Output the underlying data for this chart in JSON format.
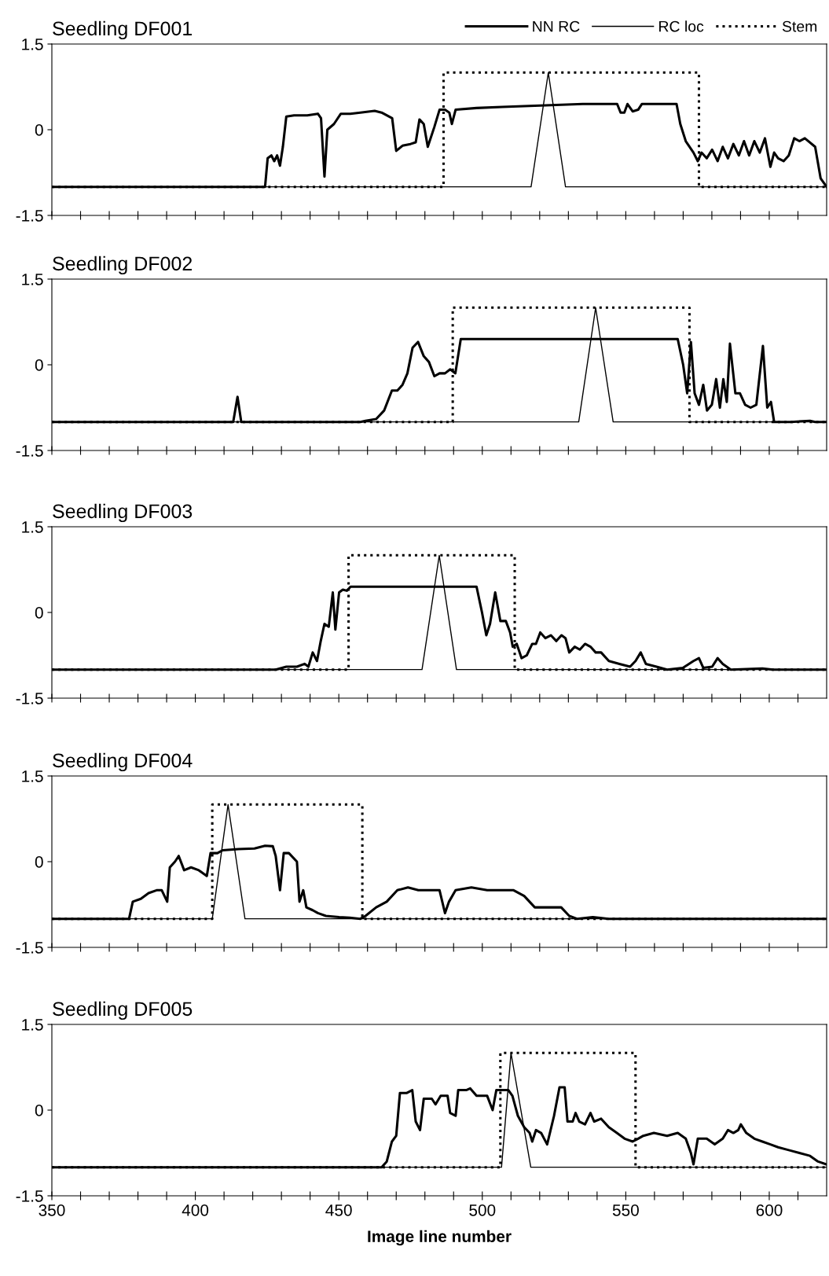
{
  "chart_data": [
    {
      "type": "line",
      "title": "Seedling DF001",
      "xlim": [
        350,
        620
      ],
      "ylim": [
        -1.5,
        1.5
      ],
      "yticks": [
        1.5,
        0,
        -1.5
      ],
      "tick_labels": "y",
      "legend": "top right",
      "xticks": [
        350,
        {
          "value": 360,
          "label": null
        },
        {
          "value": 370,
          "label": null
        },
        {
          "value": 380,
          "label": null
        },
        {
          "value": 390,
          "label": null
        },
        400,
        {
          "value": 410,
          "label": null
        },
        {
          "value": 420,
          "label": null
        },
        {
          "value": 430,
          "label": null
        },
        {
          "value": 440,
          "label": null
        },
        450,
        {
          "value": 460,
          "label": null
        },
        {
          "value": 470,
          "label": null
        },
        {
          "value": 480,
          "label": null
        },
        {
          "value": 490,
          "label": null
        },
        500,
        {
          "value": 510,
          "label": null
        },
        {
          "value": 520,
          "label": null
        },
        {
          "value": 530,
          "label": null
        },
        {
          "value": 540,
          "label": null
        },
        550,
        {
          "value": 560,
          "label": null
        },
        {
          "value": 570,
          "label": null
        },
        {
          "value": 580,
          "label": null
        },
        {
          "value": 590,
          "label": null
        },
        600,
        {
          "value": 610,
          "label": null
        }
      ],
      "series": [
        {
          "name": "NN RC",
          "color": "#000000",
          "line_style": "solid",
          "x": [
            350,
            424.3,
            425.2,
            426.5,
            427.5,
            428.5,
            429.5,
            430.5,
            431.7,
            434.4,
            439,
            442.7,
            443.8,
            445,
            446,
            448.3,
            450.7,
            454,
            457.5,
            462.5,
            464.9,
            468.6,
            470,
            472.2,
            475,
            476.8,
            478.1,
            479.6,
            481,
            483.3,
            485.1,
            487,
            488.5,
            489.4,
            490.7,
            498,
            507,
            523.9,
            535,
            547,
            548.2,
            549.5,
            550.6,
            552.4,
            554.3,
            555.6,
            567.7,
            569,
            570.9,
            573.6,
            575.1,
            576.4,
            578.2,
            580.1,
            582,
            583.8,
            585.6,
            587.5,
            589.4,
            591.2,
            593,
            594.8,
            596.7,
            598.5,
            600.4,
            601.7,
            603.1,
            605,
            606.8,
            608.7,
            610.5,
            612.4,
            616,
            617.9,
            620
          ],
          "values": [
            -1,
            -1,
            -0.5,
            -0.45,
            -0.55,
            -0.45,
            -0.63,
            -0.3,
            0.23,
            0.25,
            0.25,
            0.28,
            0.2,
            -0.82,
            0,
            0.1,
            0.28,
            0.28,
            0.3,
            0.33,
            0.3,
            0.2,
            -0.37,
            -0.28,
            -0.25,
            -0.22,
            0.18,
            0.1,
            -0.3,
            0.05,
            0.35,
            0.35,
            0.3,
            0.1,
            0.35,
            0.38,
            0.4,
            0.43,
            0.45,
            0.45,
            0.3,
            0.3,
            0.45,
            0.32,
            0.35,
            0.45,
            0.45,
            0.1,
            -0.2,
            -0.4,
            -0.55,
            -0.4,
            -0.5,
            -0.35,
            -0.55,
            -0.3,
            -0.5,
            -0.25,
            -0.45,
            -0.2,
            -0.45,
            -0.2,
            -0.4,
            -0.15,
            -0.65,
            -0.4,
            -0.5,
            -0.55,
            -0.45,
            -0.15,
            -0.2,
            -0.15,
            -0.3,
            -0.85,
            -1
          ]
        },
        {
          "name": "RC loc",
          "color": "#000000",
          "line_style": "solid",
          "x": [
            350,
            517,
            523,
            529,
            620
          ],
          "values": [
            -1,
            -1,
            1,
            -1,
            -1
          ]
        },
        {
          "name": "Stem",
          "color": "#000000",
          "line_style": "dotted",
          "x": [
            350,
            486.5,
            486.5,
            575.5,
            575.5,
            620
          ],
          "values": [
            -1,
            -1,
            1,
            1,
            -1,
            -1
          ]
        }
      ]
    },
    {
      "type": "line",
      "title": "Seedling DF002",
      "xlim": [
        350,
        620
      ],
      "ylim": [
        -1.5,
        1.5
      ],
      "yticks": [
        1.5,
        0,
        -1.5
      ],
      "tick_labels": "y",
      "xticks": [
        350,
        {
          "value": 360,
          "label": null
        },
        {
          "value": 370,
          "label": null
        },
        {
          "value": 380,
          "label": null
        },
        {
          "value": 390,
          "label": null
        },
        400,
        {
          "value": 410,
          "label": null
        },
        {
          "value": 420,
          "label": null
        },
        {
          "value": 430,
          "label": null
        },
        {
          "value": 440,
          "label": null
        },
        450,
        {
          "value": 460,
          "label": null
        },
        {
          "value": 470,
          "label": null
        },
        {
          "value": 480,
          "label": null
        },
        {
          "value": 490,
          "label": null
        },
        500,
        {
          "value": 510,
          "label": null
        },
        {
          "value": 520,
          "label": null
        },
        {
          "value": 530,
          "label": null
        },
        {
          "value": 540,
          "label": null
        },
        550,
        {
          "value": 560,
          "label": null
        },
        {
          "value": 570,
          "label": null
        },
        {
          "value": 580,
          "label": null
        },
        {
          "value": 590,
          "label": null
        },
        600,
        {
          "value": 610,
          "label": null
        }
      ],
      "series": [
        {
          "color": "#000000",
          "line_style": "solid",
          "x": [
            350,
            413.2,
            414.7,
            416,
            457.5,
            459.3,
            463,
            465.8,
            468.5,
            470.4,
            472.2,
            473.9,
            475.7,
            477.6,
            479.6,
            481.4,
            483.3,
            485.1,
            487,
            488.8,
            490.6,
            492.5,
            568.1,
            570,
            571.4,
            572.7,
            574,
            575.5,
            577,
            578.3,
            580,
            581.5,
            582.8,
            584,
            585.2,
            586.3,
            588.2,
            589.8,
            591.6,
            593.5,
            595.5,
            597.8,
            599.3,
            600.6,
            601.7,
            607.5,
            614.2,
            616,
            620
          ],
          "values": [
            -1,
            -1,
            -0.56,
            -1,
            -1,
            -0.98,
            -0.95,
            -0.8,
            -0.45,
            -0.45,
            -0.35,
            -0.15,
            0.3,
            0.4,
            0.15,
            0.05,
            -0.2,
            -0.15,
            -0.15,
            -0.08,
            -0.15,
            0.45,
            0.45,
            0,
            -0.5,
            0.4,
            -0.5,
            -0.7,
            -0.35,
            -0.8,
            -0.7,
            -0.25,
            -0.75,
            -0.25,
            -0.65,
            0.37,
            -0.5,
            -0.5,
            -0.7,
            -0.75,
            -0.7,
            0.33,
            -0.75,
            -0.65,
            -1,
            -1,
            -0.98,
            -1,
            -1
          ]
        },
        {
          "color": "#000000",
          "line_style": "solid",
          "x": [
            350,
            533.6,
            539.5,
            545.6,
            620
          ],
          "values": [
            -1,
            -1,
            1,
            -1,
            -1
          ]
        },
        {
          "color": "#000000",
          "line_style": "dotted",
          "x": [
            350,
            489.7,
            489.7,
            572.2,
            572.2,
            620
          ],
          "values": [
            -1,
            -1,
            1,
            1,
            -1,
            -1
          ]
        }
      ]
    },
    {
      "type": "line",
      "title": "Seedling DF003",
      "xlim": [
        350,
        620
      ],
      "ylim": [
        -1.5,
        1.5
      ],
      "yticks": [
        1.5,
        0,
        -1.5
      ],
      "tick_labels": "y",
      "xticks": [
        350,
        {
          "value": 360,
          "label": null
        },
        {
          "value": 370,
          "label": null
        },
        {
          "value": 380,
          "label": null
        },
        {
          "value": 390,
          "label": null
        },
        400,
        {
          "value": 410,
          "label": null
        },
        {
          "value": 420,
          "label": null
        },
        {
          "value": 430,
          "label": null
        },
        {
          "value": 440,
          "label": null
        },
        450,
        {
          "value": 460,
          "label": null
        },
        {
          "value": 470,
          "label": null
        },
        {
          "value": 480,
          "label": null
        },
        {
          "value": 490,
          "label": null
        },
        500,
        {
          "value": 510,
          "label": null
        },
        {
          "value": 520,
          "label": null
        },
        {
          "value": 530,
          "label": null
        },
        {
          "value": 540,
          "label": null
        },
        550,
        {
          "value": 560,
          "label": null
        },
        {
          "value": 570,
          "label": null
        },
        {
          "value": 580,
          "label": null
        },
        {
          "value": 590,
          "label": null
        },
        600,
        {
          "value": 610,
          "label": null
        }
      ],
      "series": [
        {
          "color": "#000000",
          "line_style": "solid",
          "x": [
            350,
            428,
            431.7,
            435.4,
            438.1,
            439.4,
            440.9,
            442.4,
            443.7,
            445,
            446.5,
            447.9,
            448.8,
            450.1,
            451.4,
            452.8,
            454.1,
            498,
            499.9,
            501.4,
            502.7,
            504.5,
            506.3,
            508.2,
            509.7,
            510.6,
            512,
            513.7,
            515.5,
            517.4,
            518.7,
            520.2,
            522,
            523.9,
            525.8,
            527.6,
            529,
            530.3,
            532.2,
            534,
            535.8,
            537.7,
            539.5,
            541.4,
            544.1,
            547.8,
            551.5,
            553.4,
            555.2,
            557,
            560.7,
            564.4,
            569.9,
            573.6,
            575.5,
            577,
            580.1,
            582,
            583.8,
            586.6,
            597.6,
            601.3,
            620
          ],
          "values": [
            -1,
            -1,
            -0.95,
            -0.95,
            -0.9,
            -0.95,
            -0.7,
            -0.85,
            -0.5,
            -0.2,
            -0.25,
            0.35,
            -0.3,
            0.35,
            0.4,
            0.38,
            0.45,
            0.45,
            0,
            -0.4,
            -0.2,
            0.35,
            -0.15,
            -0.15,
            -0.35,
            -0.6,
            -0.55,
            -0.8,
            -0.75,
            -0.55,
            -0.55,
            -0.35,
            -0.45,
            -0.4,
            -0.5,
            -0.4,
            -0.45,
            -0.7,
            -0.6,
            -0.65,
            -0.55,
            -0.6,
            -0.7,
            -0.7,
            -0.85,
            -0.9,
            -0.95,
            -0.85,
            -0.7,
            -0.9,
            -0.95,
            -1,
            -0.97,
            -0.85,
            -0.8,
            -0.97,
            -0.95,
            -0.8,
            -0.9,
            -1,
            -0.98,
            -1,
            -1
          ]
        },
        {
          "color": "#000000",
          "line_style": "solid",
          "x": [
            350,
            479,
            485,
            491,
            620
          ],
          "values": [
            -1,
            -1,
            1,
            -1,
            -1
          ]
        },
        {
          "color": "#000000",
          "line_style": "dotted",
          "x": [
            350,
            453.4,
            453.4,
            511.3,
            511.3,
            620
          ],
          "values": [
            -1,
            -1,
            1,
            1,
            -1,
            -1
          ]
        }
      ]
    },
    {
      "type": "line",
      "title": "Seedling DF004",
      "xlim": [
        350,
        620
      ],
      "ylim": [
        -1.5,
        1.5
      ],
      "yticks": [
        1.5,
        0,
        -1.5
      ],
      "tick_labels": "y",
      "xticks": [
        350,
        {
          "value": 360,
          "label": null
        },
        {
          "value": 370,
          "label": null
        },
        {
          "value": 380,
          "label": null
        },
        {
          "value": 390,
          "label": null
        },
        400,
        {
          "value": 410,
          "label": null
        },
        {
          "value": 420,
          "label": null
        },
        {
          "value": 430,
          "label": null
        },
        {
          "value": 440,
          "label": null
        },
        450,
        {
          "value": 460,
          "label": null
        },
        {
          "value": 470,
          "label": null
        },
        {
          "value": 480,
          "label": null
        },
        {
          "value": 490,
          "label": null
        },
        500,
        {
          "value": 510,
          "label": null
        },
        {
          "value": 520,
          "label": null
        },
        {
          "value": 530,
          "label": null
        },
        {
          "value": 540,
          "label": null
        },
        550,
        {
          "value": 560,
          "label": null
        },
        {
          "value": 570,
          "label": null
        },
        {
          "value": 580,
          "label": null
        },
        {
          "value": 590,
          "label": null
        },
        600,
        {
          "value": 610,
          "label": null
        }
      ],
      "series": [
        {
          "color": "#000000",
          "line_style": "solid",
          "x": [
            350,
            376.9,
            378.2,
            381,
            383.7,
            386.5,
            388.3,
            390.2,
            391.1,
            392.9,
            394.2,
            396.1,
            398.5,
            401.2,
            404,
            405.3,
            407.7,
            409.5,
            415,
            420.6,
            424.3,
            427,
            428,
            429.5,
            430.8,
            432.6,
            435.4,
            436.3,
            437.6,
            438.7,
            440.9,
            442.7,
            445.5,
            450.1,
            453.8,
            457.5,
            459.3,
            463,
            466.7,
            470.4,
            474.1,
            477.7,
            481.4,
            485.1,
            487,
            488.4,
            490.7,
            496.2,
            501.7,
            507.2,
            510.9,
            514.6,
            518.3,
            522,
            527.5,
            530.3,
            533,
            538.5,
            544,
            620
          ],
          "values": [
            -1,
            -1,
            -0.7,
            -0.65,
            -0.55,
            -0.5,
            -0.5,
            -0.7,
            -0.1,
            0,
            0.1,
            -0.15,
            -0.1,
            -0.15,
            -0.25,
            0.15,
            0.15,
            0.2,
            0.22,
            0.23,
            0.28,
            0.27,
            0.1,
            -0.5,
            0.15,
            0.15,
            0,
            -0.7,
            -0.5,
            -0.8,
            -0.85,
            -0.9,
            -0.95,
            -0.97,
            -0.98,
            -1,
            -0.95,
            -0.8,
            -0.7,
            -0.5,
            -0.45,
            -0.5,
            -0.5,
            -0.5,
            -0.9,
            -0.7,
            -0.5,
            -0.45,
            -0.5,
            -0.5,
            -0.5,
            -0.6,
            -0.8,
            -0.8,
            -0.8,
            -0.95,
            -1,
            -0.97,
            -1,
            -1
          ]
        },
        {
          "color": "#000000",
          "line_style": "solid",
          "x": [
            350,
            405.9,
            411.4,
            417.3,
            620
          ],
          "values": [
            -1,
            -1,
            1,
            -1,
            -1
          ]
        },
        {
          "color": "#000000",
          "line_style": "dotted",
          "x": [
            350,
            405.9,
            405.9,
            458.2,
            458.2,
            620
          ],
          "values": [
            -1,
            -1,
            1,
            1,
            -1,
            -1
          ]
        }
      ]
    },
    {
      "type": "line",
      "title": "Seedling DF005",
      "xlabel": "Image line number",
      "xlim": [
        350,
        620
      ],
      "ylim": [
        -1.5,
        1.5
      ],
      "yticks": [
        1.5,
        0,
        -1.5
      ],
      "xticks": [
        350,
        {
          "value": 360,
          "label": null
        },
        {
          "value": 370,
          "label": null
        },
        {
          "value": 380,
          "label": null
        },
        {
          "value": 390,
          "label": null
        },
        400,
        {
          "value": 410,
          "label": null
        },
        {
          "value": 420,
          "label": null
        },
        {
          "value": 430,
          "label": null
        },
        {
          "value": 440,
          "label": null
        },
        450,
        {
          "value": 460,
          "label": null
        },
        {
          "value": 470,
          "label": null
        },
        {
          "value": 480,
          "label": null
        },
        {
          "value": 490,
          "label": null
        },
        500,
        {
          "value": 510,
          "label": null
        },
        {
          "value": 520,
          "label": null
        },
        {
          "value": 530,
          "label": null
        },
        {
          "value": 540,
          "label": null
        },
        550,
        {
          "value": 560,
          "label": null
        },
        {
          "value": 570,
          "label": null
        },
        {
          "value": 580,
          "label": null
        },
        {
          "value": 590,
          "label": null
        },
        600,
        {
          "value": 610,
          "label": null
        }
      ],
      "series": [
        {
          "color": "#000000",
          "line_style": "solid",
          "x": [
            350,
            464.9,
            466.7,
            468.5,
            470,
            471.3,
            473.7,
            475.6,
            476.8,
            478.3,
            479.6,
            482.4,
            483.7,
            485.5,
            487.9,
            488.8,
            490.7,
            491.6,
            494.4,
            495.8,
            498,
            501.7,
            503.6,
            504.9,
            509.1,
            510.5,
            512.4,
            514.6,
            516.5,
            517.4,
            518.7,
            520.5,
            522.6,
            525,
            526.9,
            528.7,
            529.7,
            531.5,
            532.5,
            533.8,
            535.8,
            537.7,
            539,
            541.4,
            544.1,
            546.9,
            549.6,
            552.4,
            554.3,
            556.1,
            559.8,
            564.4,
            568.1,
            570.9,
            572.7,
            573.6,
            575.1,
            578.2,
            581,
            583.8,
            585.6,
            587.5,
            589.2,
            590.1,
            592,
            594.8,
            597.6,
            600.4,
            603.1,
            606.8,
            610.5,
            614.2,
            617,
            620
          ],
          "values": [
            -1,
            -1,
            -0.9,
            -0.55,
            -0.45,
            0.3,
            0.3,
            0.35,
            -0.2,
            -0.35,
            0.2,
            0.2,
            0.1,
            0.25,
            0.25,
            -0.05,
            -0.1,
            0.35,
            0.35,
            0.38,
            0.25,
            0.25,
            0,
            0.35,
            0.35,
            0.25,
            -0.1,
            -0.3,
            -0.4,
            -0.55,
            -0.35,
            -0.4,
            -0.6,
            -0.1,
            0.4,
            0.4,
            -0.2,
            -0.2,
            -0.05,
            -0.2,
            -0.25,
            -0.05,
            -0.2,
            -0.15,
            -0.3,
            -0.4,
            -0.5,
            -0.55,
            -0.5,
            -0.45,
            -0.4,
            -0.45,
            -0.4,
            -0.5,
            -0.75,
            -0.95,
            -0.5,
            -0.5,
            -0.6,
            -0.5,
            -0.35,
            -0.4,
            -0.35,
            -0.25,
            -0.4,
            -0.5,
            -0.55,
            -0.6,
            -0.65,
            -0.7,
            -0.75,
            -0.8,
            -0.9,
            -0.95
          ]
        },
        {
          "color": "#000000",
          "line_style": "solid",
          "x": [
            350,
            506.7,
            510,
            516.9,
            620
          ],
          "values": [
            -1,
            -1,
            1,
            -1,
            -1
          ]
        },
        {
          "color": "#000000",
          "line_style": "dotted",
          "x": [
            350,
            506.3,
            506.3,
            553.4,
            553.4,
            620
          ],
          "values": [
            -1,
            -1,
            1,
            1,
            -1,
            -1
          ]
        }
      ]
    }
  ]
}
